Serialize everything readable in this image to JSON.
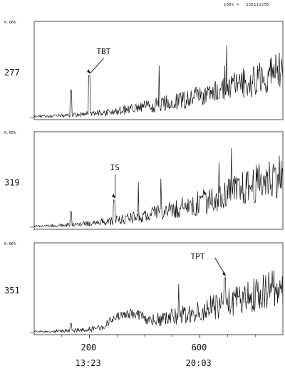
{
  "header": {
    "left": "100% =",
    "right": "158112256"
  },
  "chart_data": [
    {
      "type": "line",
      "channel": "277",
      "top_label": "0.06%",
      "annotation": "TBT",
      "peaks": [
        {
          "x": 133,
          "y": 0.3
        },
        {
          "x": 200,
          "y": 0.45
        }
      ],
      "series": [
        {
          "values": "noisy chromatogram trace rising from ~0.03 at x=0 to ~0.75 near x=880 (relative abundance)"
        }
      ],
      "xlim": [
        0,
        900
      ],
      "ylim": [
        0,
        1
      ]
    },
    {
      "type": "line",
      "channel": "319",
      "top_label": "0.05%",
      "annotation": "IS",
      "peaks": [
        {
          "x": 133,
          "y": 0.18
        },
        {
          "x": 290,
          "y": 0.3
        }
      ],
      "series": [
        {
          "values": "noisy chromatogram trace rising from ~0.02 at x=0 to ~0.85 near x=880 (relative abundance)"
        }
      ],
      "xlim": [
        0,
        900
      ],
      "ylim": [
        0,
        1
      ]
    },
    {
      "type": "line",
      "channel": "351",
      "top_label": "0.06%",
      "annotation": "TPT",
      "peaks": [
        {
          "x": 133,
          "y": 0.12
        },
        {
          "x": 690,
          "y": 0.62
        }
      ],
      "series": [
        {
          "values": "noisy chromatogram trace rising from ~0.01 at x=0 to ~0.80 near x=880 (relative abundance)"
        }
      ],
      "xlim": [
        0,
        900
      ],
      "ylim": [
        0,
        1
      ]
    }
  ],
  "x_axis": {
    "ticks": [
      200,
      600
    ],
    "tick_labels": [
      "200",
      "600"
    ],
    "time_labels": [
      "13:23",
      "20:03"
    ]
  }
}
